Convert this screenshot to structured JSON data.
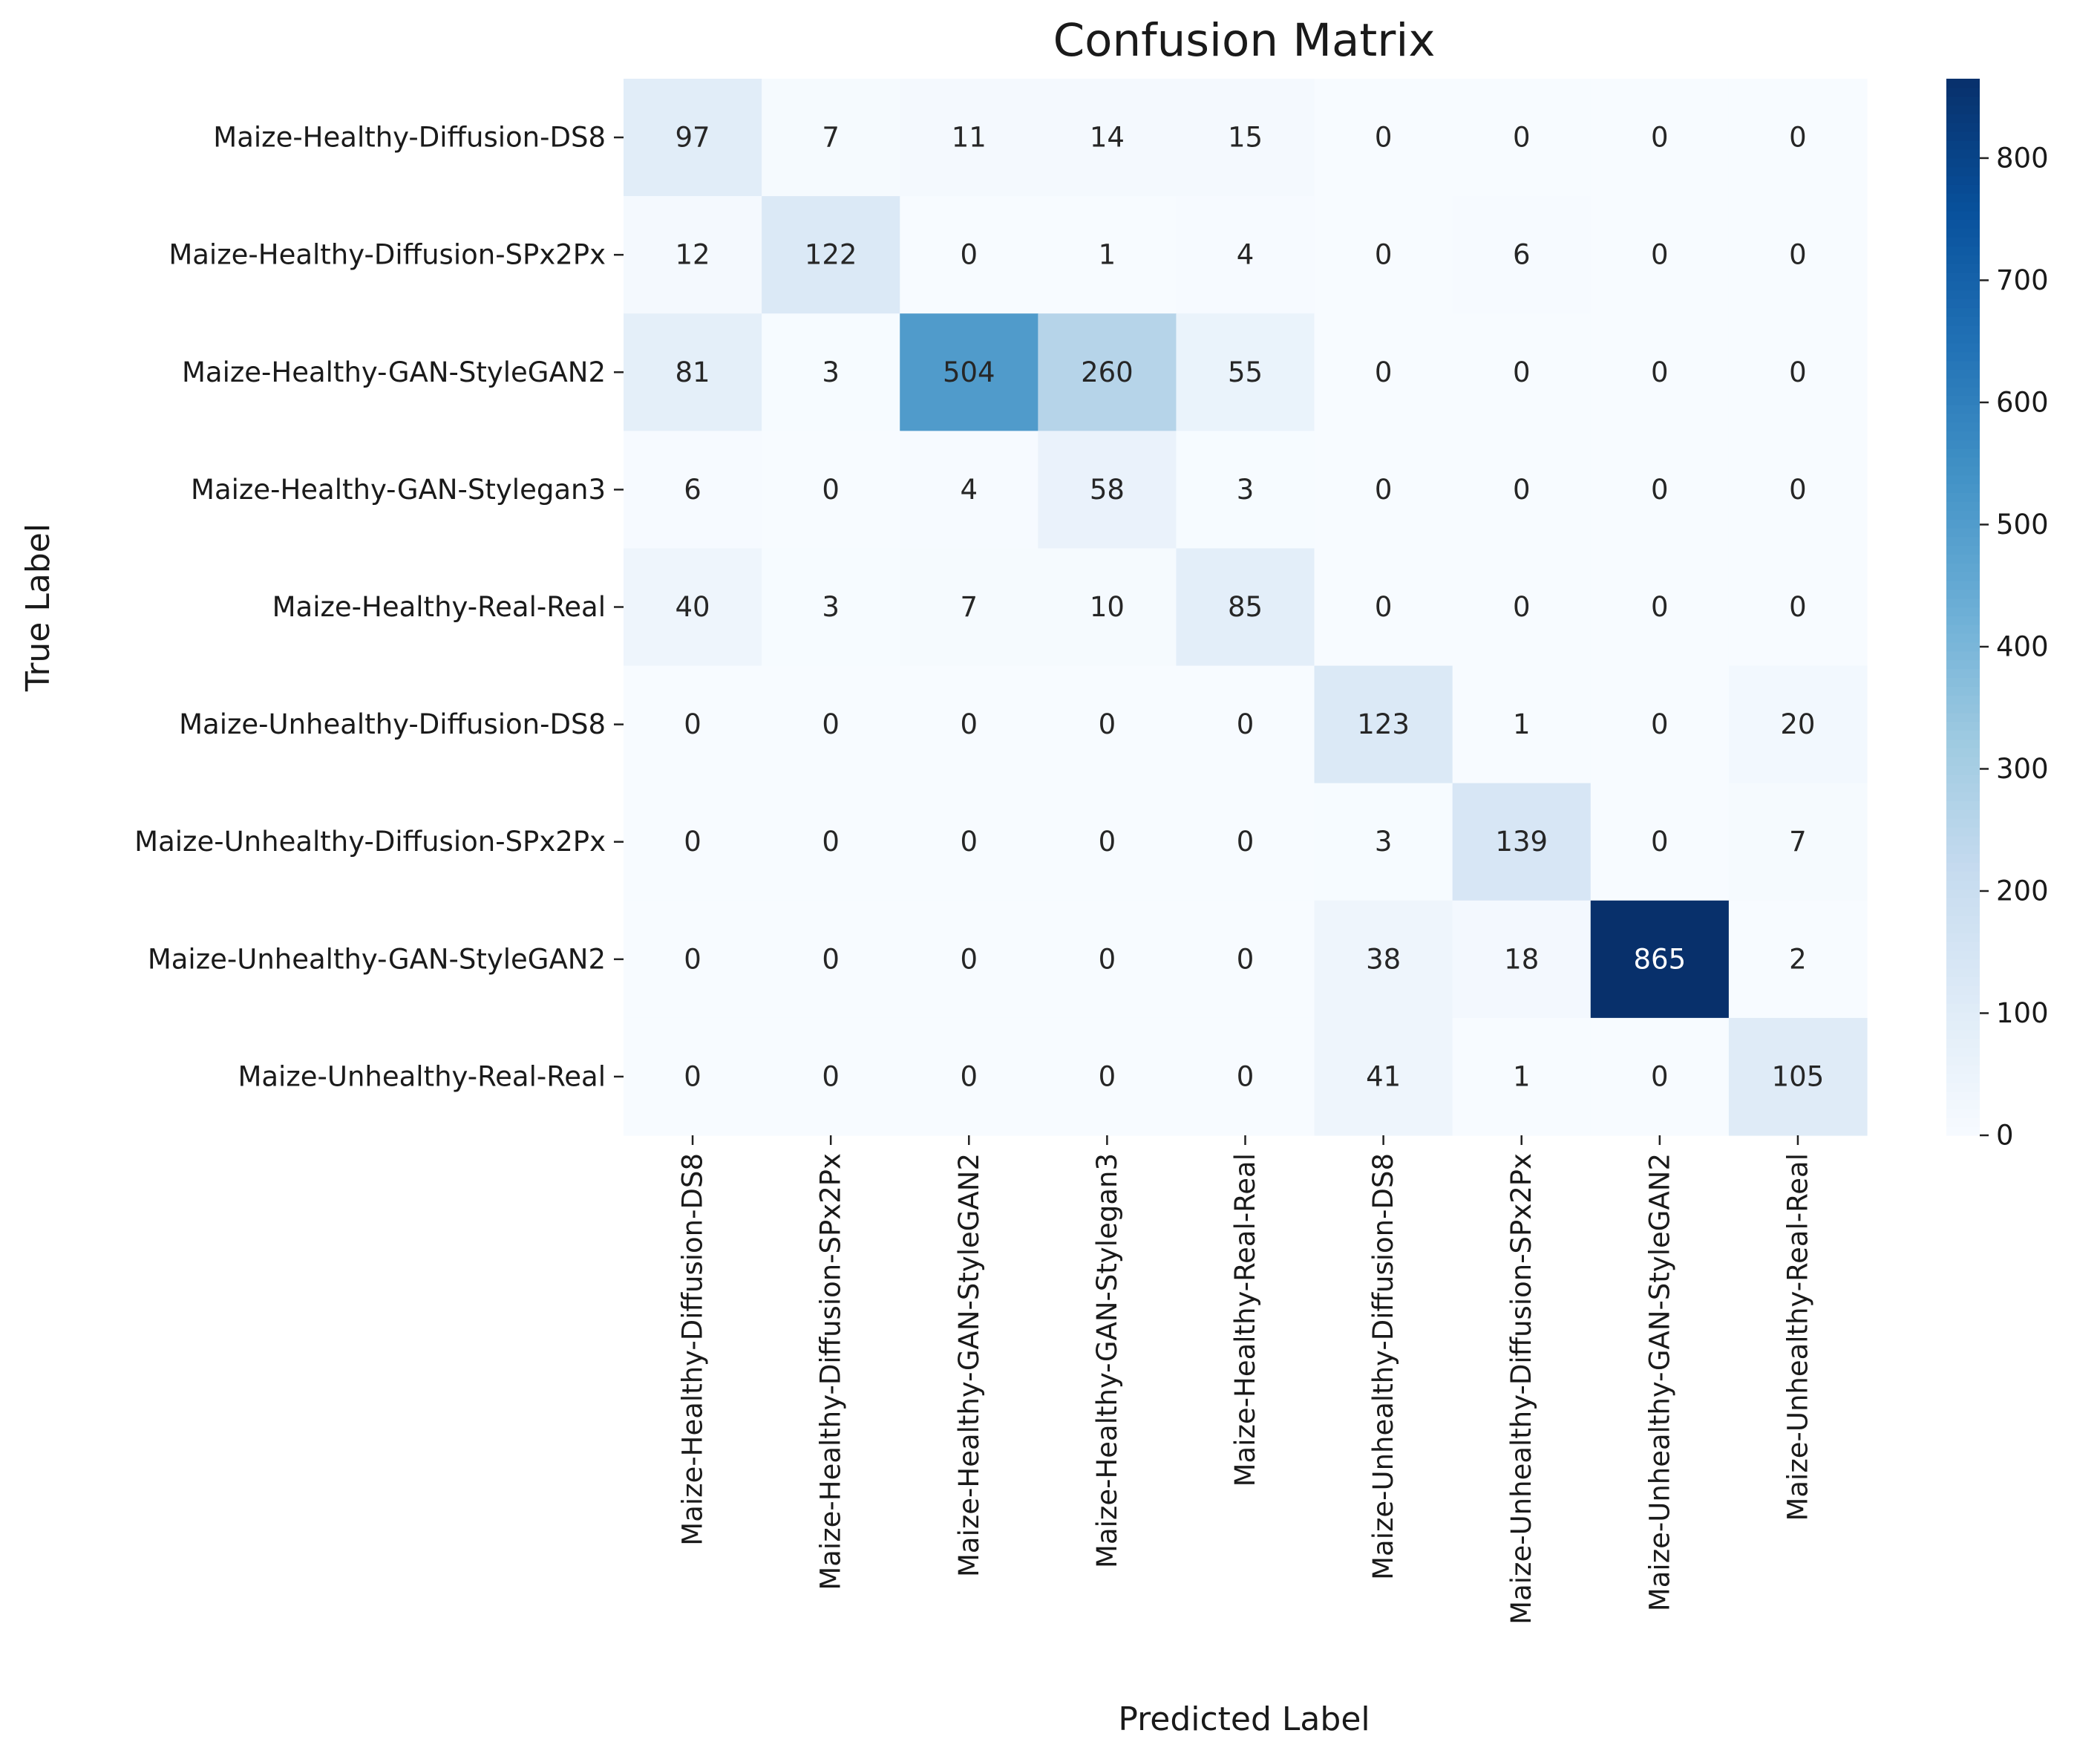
{
  "chart_data": {
    "type": "heatmap",
    "title": "Confusion Matrix",
    "xlabel": "Predicted Label",
    "ylabel": "True Label",
    "row_labels": [
      "Maize-Healthy-Diffusion-DS8",
      "Maize-Healthy-Diffusion-SPx2Px",
      "Maize-Healthy-GAN-StyleGAN2",
      "Maize-Healthy-GAN-Stylegan3",
      "Maize-Healthy-Real-Real",
      "Maize-Unhealthy-Diffusion-DS8",
      "Maize-Unhealthy-Diffusion-SPx2Px",
      "Maize-Unhealthy-GAN-StyleGAN2",
      "Maize-Unhealthy-Real-Real"
    ],
    "col_labels": [
      "Maize-Healthy-Diffusion-DS8",
      "Maize-Healthy-Diffusion-SPx2Px",
      "Maize-Healthy-GAN-StyleGAN2",
      "Maize-Healthy-GAN-Stylegan3",
      "Maize-Healthy-Real-Real",
      "Maize-Unhealthy-Diffusion-DS8",
      "Maize-Unhealthy-Diffusion-SPx2Px",
      "Maize-Unhealthy-GAN-StyleGAN2",
      "Maize-Unhealthy-Real-Real"
    ],
    "values": [
      [
        97,
        7,
        11,
        14,
        15,
        0,
        0,
        0,
        0
      ],
      [
        12,
        122,
        0,
        1,
        4,
        0,
        6,
        0,
        0
      ],
      [
        81,
        3,
        504,
        260,
        55,
        0,
        0,
        0,
        0
      ],
      [
        6,
        0,
        4,
        58,
        3,
        0,
        0,
        0,
        0
      ],
      [
        40,
        3,
        7,
        10,
        85,
        0,
        0,
        0,
        0
      ],
      [
        0,
        0,
        0,
        0,
        0,
        123,
        1,
        0,
        20
      ],
      [
        0,
        0,
        0,
        0,
        0,
        3,
        139,
        0,
        7
      ],
      [
        0,
        0,
        0,
        0,
        0,
        38,
        18,
        865,
        2
      ],
      [
        0,
        0,
        0,
        0,
        0,
        41,
        1,
        0,
        105
      ]
    ],
    "colormap": "Blues",
    "colorbar": {
      "min": 0,
      "max": 865,
      "ticks": [
        0,
        100,
        200,
        300,
        400,
        500,
        600,
        700,
        800
      ]
    }
  }
}
